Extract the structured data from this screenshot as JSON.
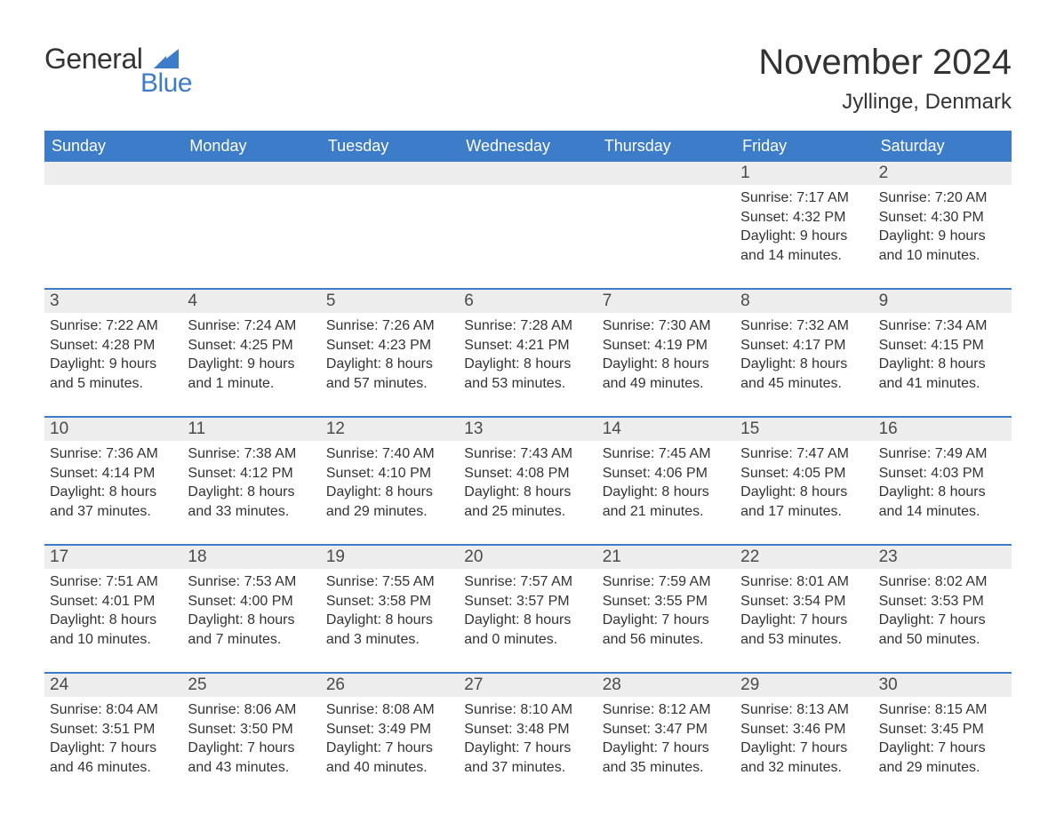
{
  "logo": {
    "text1": "General",
    "text2": "Blue"
  },
  "title": "November 2024",
  "location": "Jyllinge, Denmark",
  "colors": {
    "accent": "#3d7cc9",
    "header_bg": "#3d7cc9",
    "header_text": "#ffffff",
    "daynum_bg": "#ededed",
    "body_text": "#333333",
    "border": "#3d7cc9"
  },
  "weekdays": [
    "Sunday",
    "Monday",
    "Tuesday",
    "Wednesday",
    "Thursday",
    "Friday",
    "Saturday"
  ],
  "weeks": [
    [
      {
        "empty": true
      },
      {
        "empty": true
      },
      {
        "empty": true
      },
      {
        "empty": true
      },
      {
        "empty": true
      },
      {
        "num": "1",
        "sunrise": "Sunrise: 7:17 AM",
        "sunset": "Sunset: 4:32 PM",
        "daylight1": "Daylight: 9 hours",
        "daylight2": "and 14 minutes."
      },
      {
        "num": "2",
        "sunrise": "Sunrise: 7:20 AM",
        "sunset": "Sunset: 4:30 PM",
        "daylight1": "Daylight: 9 hours",
        "daylight2": "and 10 minutes."
      }
    ],
    [
      {
        "num": "3",
        "sunrise": "Sunrise: 7:22 AM",
        "sunset": "Sunset: 4:28 PM",
        "daylight1": "Daylight: 9 hours",
        "daylight2": "and 5 minutes."
      },
      {
        "num": "4",
        "sunrise": "Sunrise: 7:24 AM",
        "sunset": "Sunset: 4:25 PM",
        "daylight1": "Daylight: 9 hours",
        "daylight2": "and 1 minute."
      },
      {
        "num": "5",
        "sunrise": "Sunrise: 7:26 AM",
        "sunset": "Sunset: 4:23 PM",
        "daylight1": "Daylight: 8 hours",
        "daylight2": "and 57 minutes."
      },
      {
        "num": "6",
        "sunrise": "Sunrise: 7:28 AM",
        "sunset": "Sunset: 4:21 PM",
        "daylight1": "Daylight: 8 hours",
        "daylight2": "and 53 minutes."
      },
      {
        "num": "7",
        "sunrise": "Sunrise: 7:30 AM",
        "sunset": "Sunset: 4:19 PM",
        "daylight1": "Daylight: 8 hours",
        "daylight2": "and 49 minutes."
      },
      {
        "num": "8",
        "sunrise": "Sunrise: 7:32 AM",
        "sunset": "Sunset: 4:17 PM",
        "daylight1": "Daylight: 8 hours",
        "daylight2": "and 45 minutes."
      },
      {
        "num": "9",
        "sunrise": "Sunrise: 7:34 AM",
        "sunset": "Sunset: 4:15 PM",
        "daylight1": "Daylight: 8 hours",
        "daylight2": "and 41 minutes."
      }
    ],
    [
      {
        "num": "10",
        "sunrise": "Sunrise: 7:36 AM",
        "sunset": "Sunset: 4:14 PM",
        "daylight1": "Daylight: 8 hours",
        "daylight2": "and 37 minutes."
      },
      {
        "num": "11",
        "sunrise": "Sunrise: 7:38 AM",
        "sunset": "Sunset: 4:12 PM",
        "daylight1": "Daylight: 8 hours",
        "daylight2": "and 33 minutes."
      },
      {
        "num": "12",
        "sunrise": "Sunrise: 7:40 AM",
        "sunset": "Sunset: 4:10 PM",
        "daylight1": "Daylight: 8 hours",
        "daylight2": "and 29 minutes."
      },
      {
        "num": "13",
        "sunrise": "Sunrise: 7:43 AM",
        "sunset": "Sunset: 4:08 PM",
        "daylight1": "Daylight: 8 hours",
        "daylight2": "and 25 minutes."
      },
      {
        "num": "14",
        "sunrise": "Sunrise: 7:45 AM",
        "sunset": "Sunset: 4:06 PM",
        "daylight1": "Daylight: 8 hours",
        "daylight2": "and 21 minutes."
      },
      {
        "num": "15",
        "sunrise": "Sunrise: 7:47 AM",
        "sunset": "Sunset: 4:05 PM",
        "daylight1": "Daylight: 8 hours",
        "daylight2": "and 17 minutes."
      },
      {
        "num": "16",
        "sunrise": "Sunrise: 7:49 AM",
        "sunset": "Sunset: 4:03 PM",
        "daylight1": "Daylight: 8 hours",
        "daylight2": "and 14 minutes."
      }
    ],
    [
      {
        "num": "17",
        "sunrise": "Sunrise: 7:51 AM",
        "sunset": "Sunset: 4:01 PM",
        "daylight1": "Daylight: 8 hours",
        "daylight2": "and 10 minutes."
      },
      {
        "num": "18",
        "sunrise": "Sunrise: 7:53 AM",
        "sunset": "Sunset: 4:00 PM",
        "daylight1": "Daylight: 8 hours",
        "daylight2": "and 7 minutes."
      },
      {
        "num": "19",
        "sunrise": "Sunrise: 7:55 AM",
        "sunset": "Sunset: 3:58 PM",
        "daylight1": "Daylight: 8 hours",
        "daylight2": "and 3 minutes."
      },
      {
        "num": "20",
        "sunrise": "Sunrise: 7:57 AM",
        "sunset": "Sunset: 3:57 PM",
        "daylight1": "Daylight: 8 hours",
        "daylight2": "and 0 minutes."
      },
      {
        "num": "21",
        "sunrise": "Sunrise: 7:59 AM",
        "sunset": "Sunset: 3:55 PM",
        "daylight1": "Daylight: 7 hours",
        "daylight2": "and 56 minutes."
      },
      {
        "num": "22",
        "sunrise": "Sunrise: 8:01 AM",
        "sunset": "Sunset: 3:54 PM",
        "daylight1": "Daylight: 7 hours",
        "daylight2": "and 53 minutes."
      },
      {
        "num": "23",
        "sunrise": "Sunrise: 8:02 AM",
        "sunset": "Sunset: 3:53 PM",
        "daylight1": "Daylight: 7 hours",
        "daylight2": "and 50 minutes."
      }
    ],
    [
      {
        "num": "24",
        "sunrise": "Sunrise: 8:04 AM",
        "sunset": "Sunset: 3:51 PM",
        "daylight1": "Daylight: 7 hours",
        "daylight2": "and 46 minutes."
      },
      {
        "num": "25",
        "sunrise": "Sunrise: 8:06 AM",
        "sunset": "Sunset: 3:50 PM",
        "daylight1": "Daylight: 7 hours",
        "daylight2": "and 43 minutes."
      },
      {
        "num": "26",
        "sunrise": "Sunrise: 8:08 AM",
        "sunset": "Sunset: 3:49 PM",
        "daylight1": "Daylight: 7 hours",
        "daylight2": "and 40 minutes."
      },
      {
        "num": "27",
        "sunrise": "Sunrise: 8:10 AM",
        "sunset": "Sunset: 3:48 PM",
        "daylight1": "Daylight: 7 hours",
        "daylight2": "and 37 minutes."
      },
      {
        "num": "28",
        "sunrise": "Sunrise: 8:12 AM",
        "sunset": "Sunset: 3:47 PM",
        "daylight1": "Daylight: 7 hours",
        "daylight2": "and 35 minutes."
      },
      {
        "num": "29",
        "sunrise": "Sunrise: 8:13 AM",
        "sunset": "Sunset: 3:46 PM",
        "daylight1": "Daylight: 7 hours",
        "daylight2": "and 32 minutes."
      },
      {
        "num": "30",
        "sunrise": "Sunrise: 8:15 AM",
        "sunset": "Sunset: 3:45 PM",
        "daylight1": "Daylight: 7 hours",
        "daylight2": "and 29 minutes."
      }
    ]
  ]
}
